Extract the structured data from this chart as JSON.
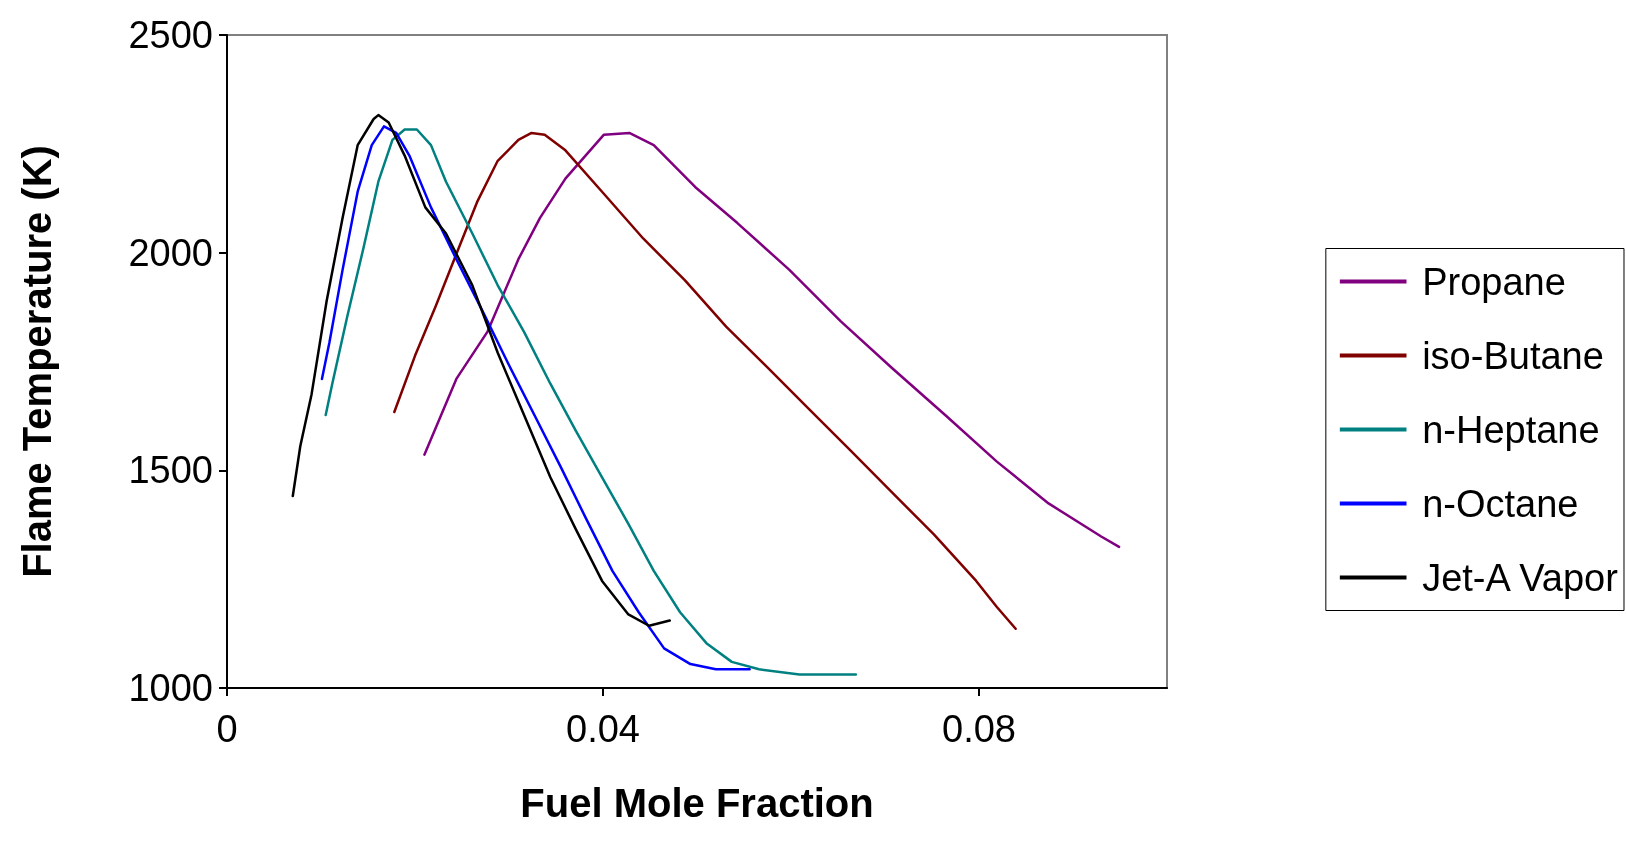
{
  "chart_data": {
    "type": "line",
    "xlabel": "Fuel Mole Fraction",
    "ylabel": "Flame Temperature (K)",
    "xlim": [
      0,
      0.1
    ],
    "xticks": [
      0,
      0.04,
      0.08
    ],
    "ylim": [
      1000,
      2500
    ],
    "yticks": [
      1000,
      1500,
      2000,
      2500
    ],
    "grid": false,
    "legend": "right",
    "marker": "none",
    "line_style": "solid",
    "series": [
      {
        "name": "Propane",
        "color": "#800080",
        "x": [
          0.021,
          0.0244,
          0.0277,
          0.031,
          0.0333,
          0.036,
          0.0401,
          0.0428,
          0.0454,
          0.0498,
          0.0543,
          0.0598,
          0.0653,
          0.0708,
          0.0764,
          0.0819,
          0.0874,
          0.093,
          0.0949
        ],
        "values": [
          1536,
          1710,
          1818,
          1985,
          2080,
          2170,
          2271,
          2275,
          2247,
          2151,
          2068,
          1961,
          1842,
          1734,
          1627,
          1520,
          1424,
          1348,
          1324
        ]
      },
      {
        "name": "iso-Butane",
        "color": "#800000",
        "x": [
          0.0178,
          0.02,
          0.0222,
          0.0244,
          0.0266,
          0.0288,
          0.031,
          0.0324,
          0.0338,
          0.036,
          0.0399,
          0.0443,
          0.0487,
          0.0531,
          0.0576,
          0.062,
          0.0664,
          0.0708,
          0.0752,
          0.0797,
          0.0819,
          0.0839
        ],
        "values": [
          1634,
          1763,
          1877,
          1997,
          2116,
          2211,
          2259,
          2275,
          2271,
          2235,
          2140,
          2032,
          1937,
          1830,
          1734,
          1639,
          1544,
          1448,
          1353,
          1246,
          1186,
          1136
        ]
      },
      {
        "name": "n-Heptane",
        "color": "#008080",
        "x": [
          0.0105,
          0.0112,
          0.0128,
          0.0145,
          0.0161,
          0.0176,
          0.0189,
          0.0202,
          0.0217,
          0.0233,
          0.0261,
          0.0288,
          0.0316,
          0.0344,
          0.0371,
          0.0399,
          0.0427,
          0.0454,
          0.0482,
          0.051,
          0.0537,
          0.0566,
          0.0609,
          0.0669
        ],
        "values": [
          1627,
          1699,
          1854,
          2009,
          2163,
          2259,
          2283,
          2283,
          2247,
          2163,
          2044,
          1925,
          1818,
          1699,
          1591,
          1484,
          1377,
          1269,
          1174,
          1103,
          1060,
          1043,
          1031,
          1031
        ]
      },
      {
        "name": "n-Octane",
        "color": "#0000ff",
        "x": [
          0.0101,
          0.0109,
          0.0123,
          0.0139,
          0.0154,
          0.0167,
          0.018,
          0.0194,
          0.0217,
          0.0244,
          0.0272,
          0.0299,
          0.0327,
          0.0355,
          0.0382,
          0.041,
          0.0438,
          0.0465,
          0.0493,
          0.052,
          0.0556
        ],
        "values": [
          1710,
          1794,
          1961,
          2140,
          2247,
          2290,
          2275,
          2223,
          2104,
          1985,
          1865,
          1746,
          1627,
          1508,
          1389,
          1269,
          1174,
          1091,
          1055,
          1043,
          1043
        ]
      },
      {
        "name": "Jet-A Vapor",
        "color": "#000000",
        "x": [
          0.007,
          0.0078,
          0.009,
          0.0106,
          0.0123,
          0.0139,
          0.0156,
          0.0161,
          0.0172,
          0.0189,
          0.0211,
          0.0233,
          0.0261,
          0.0288,
          0.0316,
          0.0344,
          0.0371,
          0.0399,
          0.0427,
          0.0449,
          0.0471
        ],
        "values": [
          1441,
          1556,
          1675,
          1889,
          2080,
          2247,
          2307,
          2316,
          2299,
          2223,
          2104,
          2044,
          1925,
          1770,
          1627,
          1484,
          1365,
          1246,
          1169,
          1143,
          1155
        ]
      }
    ]
  }
}
